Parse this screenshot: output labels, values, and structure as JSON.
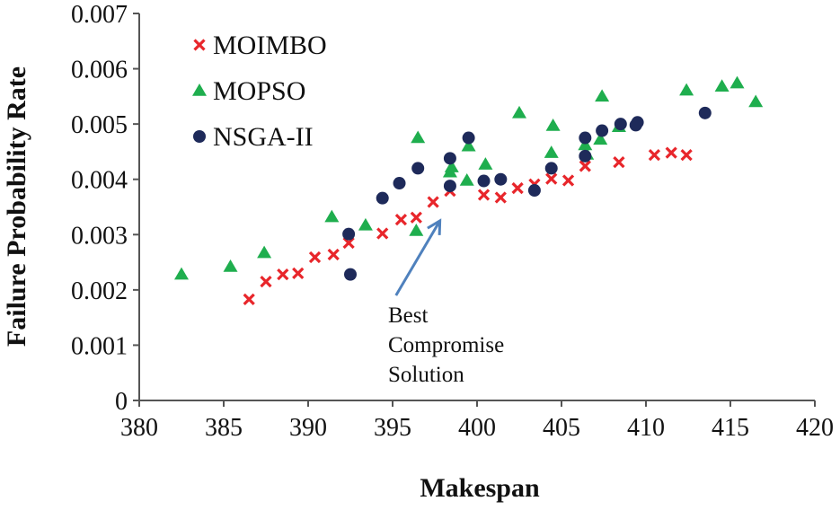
{
  "chart_data": {
    "type": "scatter",
    "xlabel": "Makespan",
    "ylabel": "Failure Probability Rate",
    "xlim": [
      380,
      420
    ],
    "ylim": [
      0,
      0.007
    ],
    "x_ticks": [
      "380",
      "385",
      "390",
      "395",
      "400",
      "405",
      "410",
      "415",
      "420"
    ],
    "y_ticks": [
      "0",
      "0.001",
      "0.002",
      "0.003",
      "0.004",
      "0.005",
      "0.006",
      "0.007"
    ],
    "grid": false,
    "legend_position": "top-left",
    "series": [
      {
        "name": "MOIMBO",
        "marker": "x",
        "color": "#e8262b",
        "points": [
          [
            386.5,
            0.00183
          ],
          [
            387.5,
            0.00215
          ],
          [
            388.5,
            0.00228
          ],
          [
            389.4,
            0.0023
          ],
          [
            390.4,
            0.00259
          ],
          [
            391.5,
            0.00264
          ],
          [
            392.4,
            0.00285
          ],
          [
            394.4,
            0.00302
          ],
          [
            395.5,
            0.00327
          ],
          [
            396.4,
            0.00331
          ],
          [
            397.4,
            0.00359
          ],
          [
            398.4,
            0.00379
          ],
          [
            400.4,
            0.00372
          ],
          [
            401.4,
            0.00367
          ],
          [
            402.4,
            0.00384
          ],
          [
            403.4,
            0.00391
          ],
          [
            404.4,
            0.00401
          ],
          [
            405.4,
            0.00398
          ],
          [
            406.4,
            0.00424
          ],
          [
            408.4,
            0.00431
          ],
          [
            410.5,
            0.00444
          ],
          [
            411.5,
            0.00448
          ],
          [
            412.4,
            0.00444
          ]
        ]
      },
      {
        "name": "MOPSO",
        "marker": "triangle",
        "color": "#1fae4e",
        "points": [
          [
            382.5,
            0.00228
          ],
          [
            385.4,
            0.00242
          ],
          [
            387.4,
            0.00267
          ],
          [
            391.4,
            0.00332
          ],
          [
            393.4,
            0.00317
          ],
          [
            396.4,
            0.00307
          ],
          [
            396.5,
            0.00475
          ],
          [
            398.4,
            0.00413
          ],
          [
            398.5,
            0.00422
          ],
          [
            399.4,
            0.00398
          ],
          [
            399.5,
            0.0046
          ],
          [
            400.5,
            0.00427
          ],
          [
            402.5,
            0.0052
          ],
          [
            404.4,
            0.00448
          ],
          [
            404.5,
            0.00497
          ],
          [
            406.4,
            0.00462
          ],
          [
            406.5,
            0.00445
          ],
          [
            407.3,
            0.00472
          ],
          [
            407.4,
            0.0055
          ],
          [
            408.4,
            0.00495
          ],
          [
            412.4,
            0.00561
          ],
          [
            414.5,
            0.00568
          ],
          [
            415.4,
            0.00574
          ],
          [
            416.5,
            0.0054
          ]
        ]
      },
      {
        "name": "NSGA-II",
        "marker": "circle",
        "color": "#1e2a5a",
        "points": [
          [
            392.4,
            0.00301
          ],
          [
            392.5,
            0.00228
          ],
          [
            394.4,
            0.00366
          ],
          [
            395.4,
            0.00393
          ],
          [
            396.5,
            0.0042
          ],
          [
            398.4,
            0.00438
          ],
          [
            398.4,
            0.00388
          ],
          [
            399.5,
            0.00475
          ],
          [
            400.4,
            0.00397
          ],
          [
            401.4,
            0.004
          ],
          [
            403.4,
            0.0038
          ],
          [
            404.4,
            0.0042
          ],
          [
            406.4,
            0.00475
          ],
          [
            406.4,
            0.00442
          ],
          [
            407.4,
            0.00488
          ],
          [
            408.5,
            0.005
          ],
          [
            409.4,
            0.00498
          ],
          [
            409.5,
            0.00503
          ],
          [
            413.5,
            0.0052
          ]
        ]
      }
    ],
    "annotation": {
      "lines": [
        "Best",
        "Compromise",
        "Solution"
      ],
      "arrow_from": [
        395.2,
        0.0019
      ],
      "arrow_to": [
        397.8,
        0.00325
      ],
      "arrow_color": "#4f81bd"
    }
  }
}
